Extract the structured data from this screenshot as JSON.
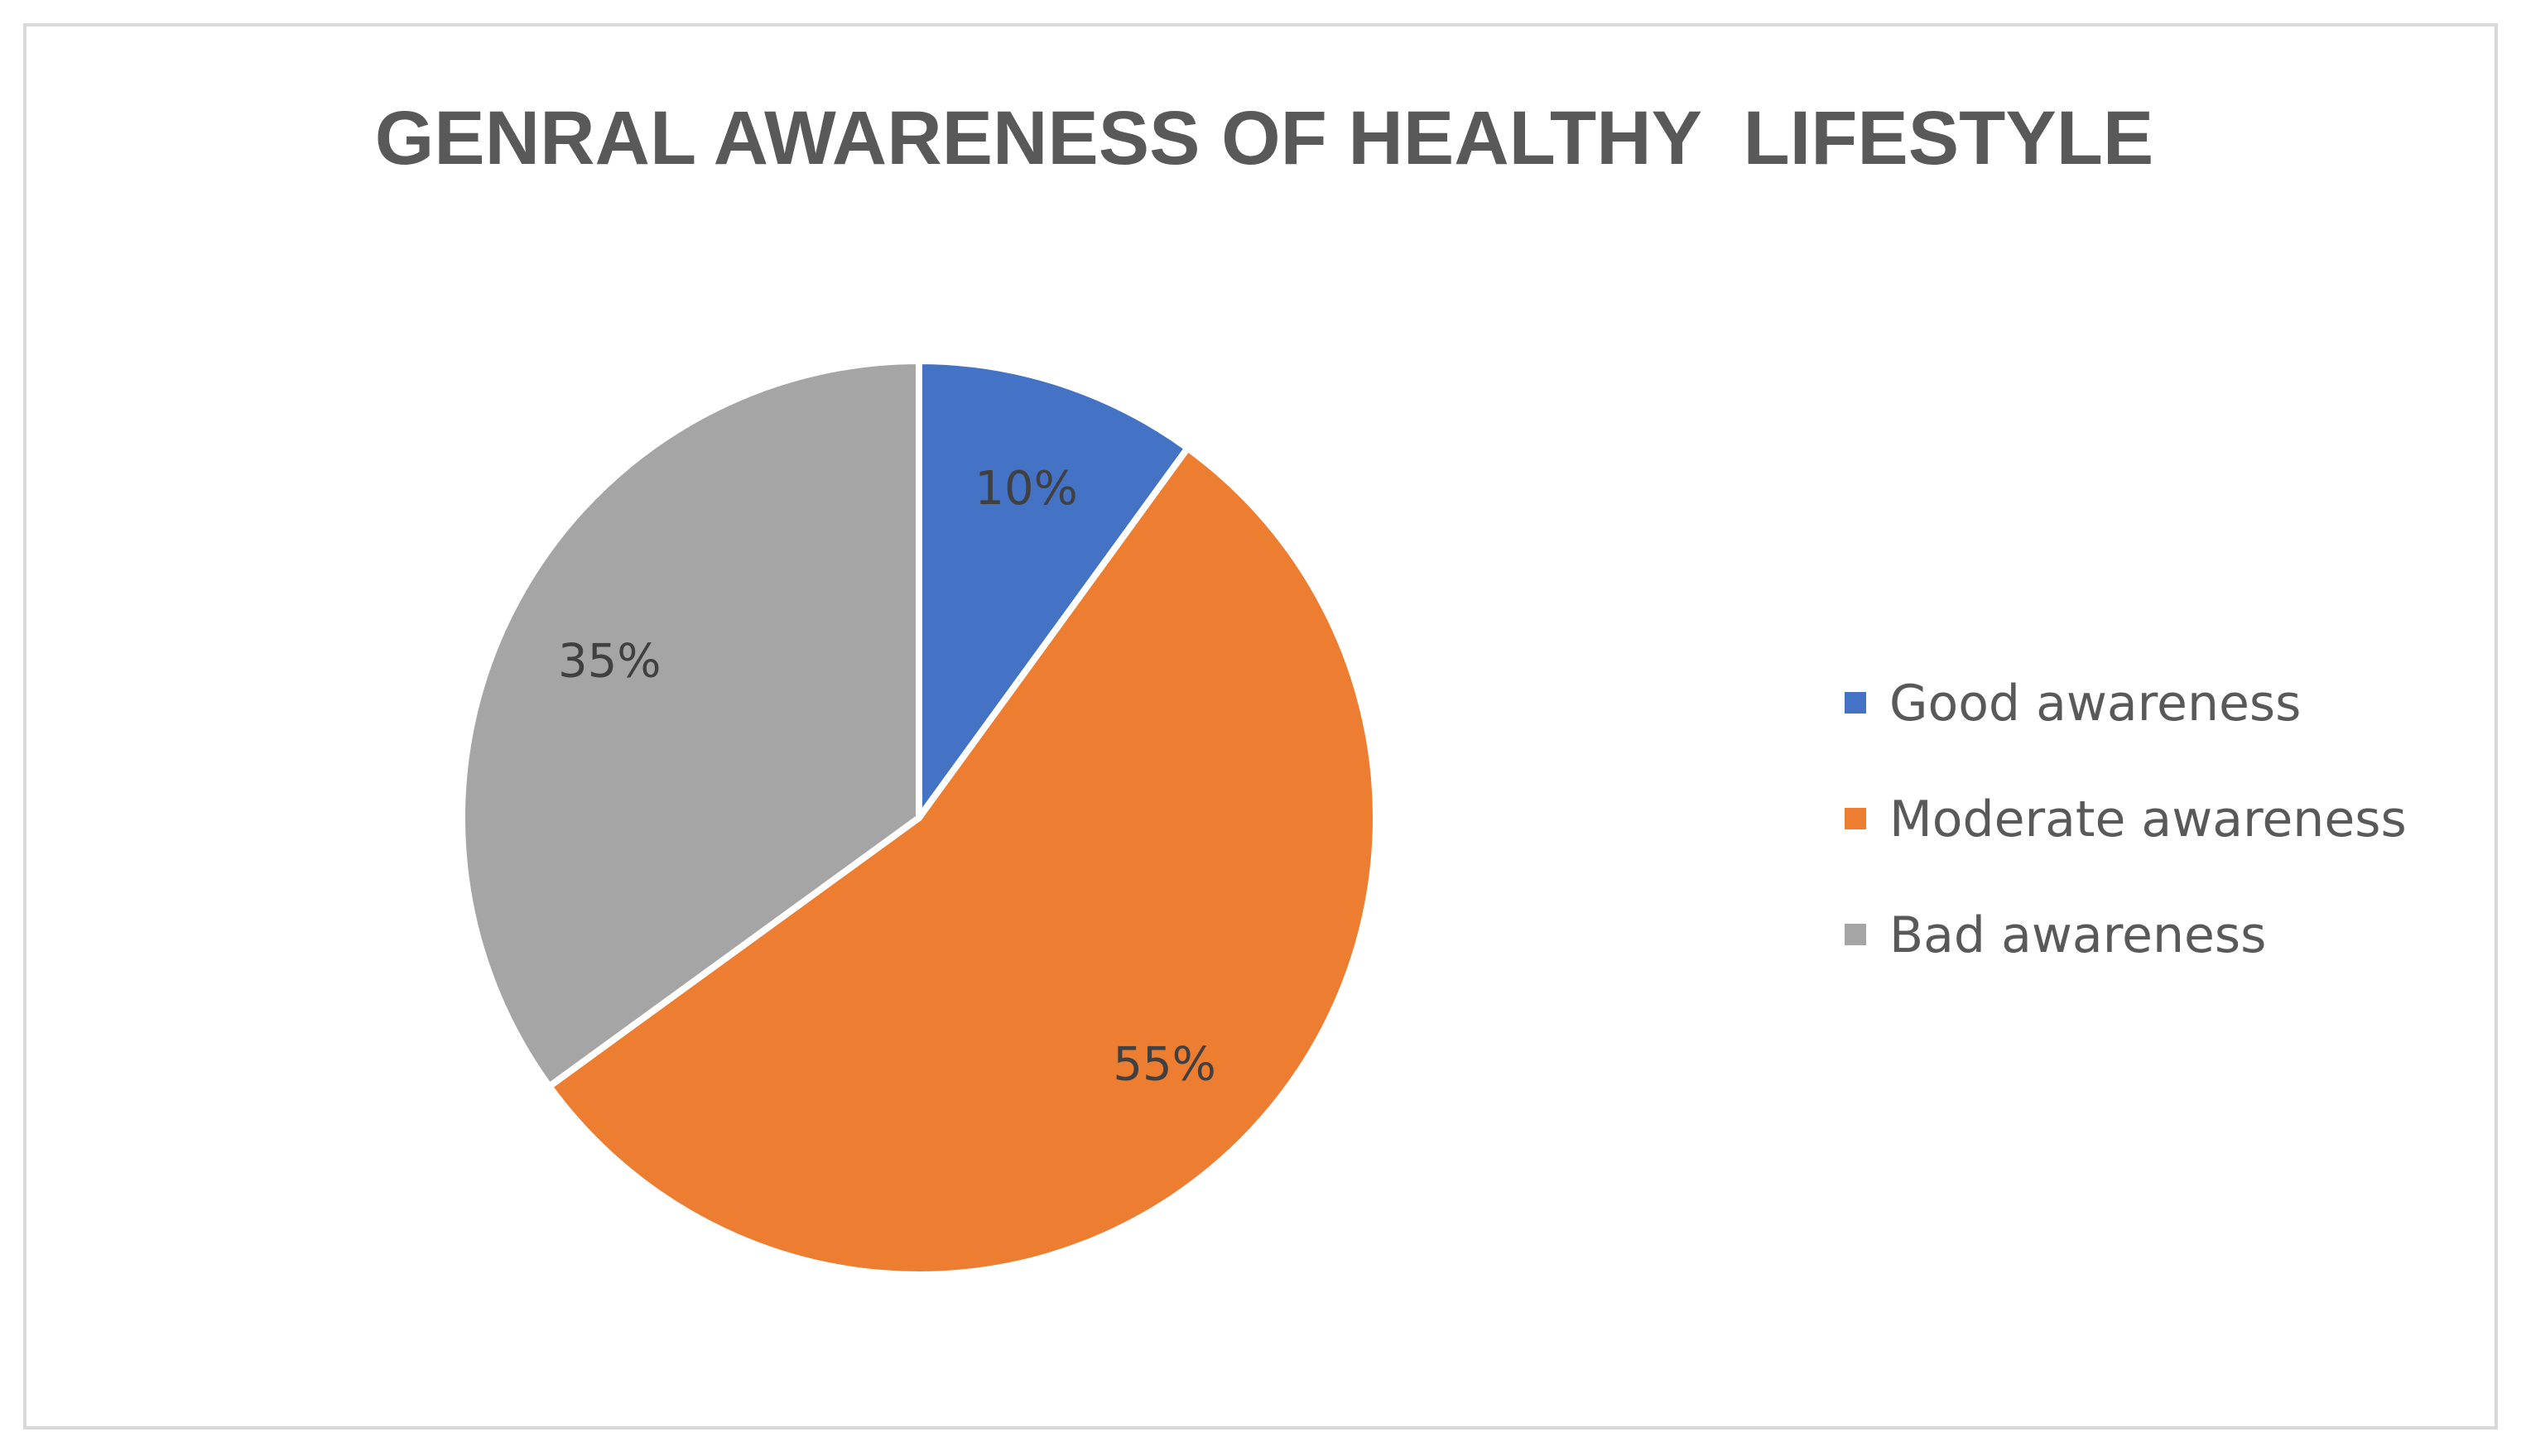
{
  "chart_data": {
    "type": "pie",
    "title": "GENRAL AWARENESS OF HEALTHY  LIFESTYLE",
    "categories": [
      "Good awareness",
      "Moderate awareness",
      "Bad awareness"
    ],
    "values": [
      10,
      55,
      35
    ],
    "data_labels": [
      "10%",
      "55%",
      "35%"
    ],
    "colors": [
      "#4472c4",
      "#ed7d31",
      "#a5a5a5"
    ],
    "legend_position": "right"
  }
}
